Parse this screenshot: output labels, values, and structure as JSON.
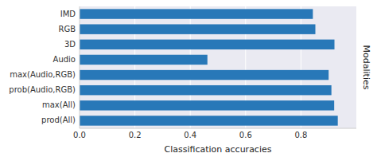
{
  "chart_data": {
    "type": "bar",
    "orientation": "horizontal",
    "categories": [
      "IMD",
      "RGB",
      "3D",
      "Audio",
      "max(Audio,RGB)",
      "prob(Audio,RGB)",
      "max(All)",
      "prod(All)"
    ],
    "values": [
      0.843,
      0.852,
      0.921,
      0.462,
      0.9,
      0.91,
      0.92,
      0.933
    ],
    "color": "#2878b8",
    "xlabel": "Classification accuracies",
    "ylabel": "Modalities",
    "xlim": [
      0.0,
      1.0
    ],
    "xticks": [
      {
        "value": 0.0,
        "label": "0.0"
      },
      0.2,
      0.4,
      0.6,
      0.8
    ],
    "grid": true
  }
}
